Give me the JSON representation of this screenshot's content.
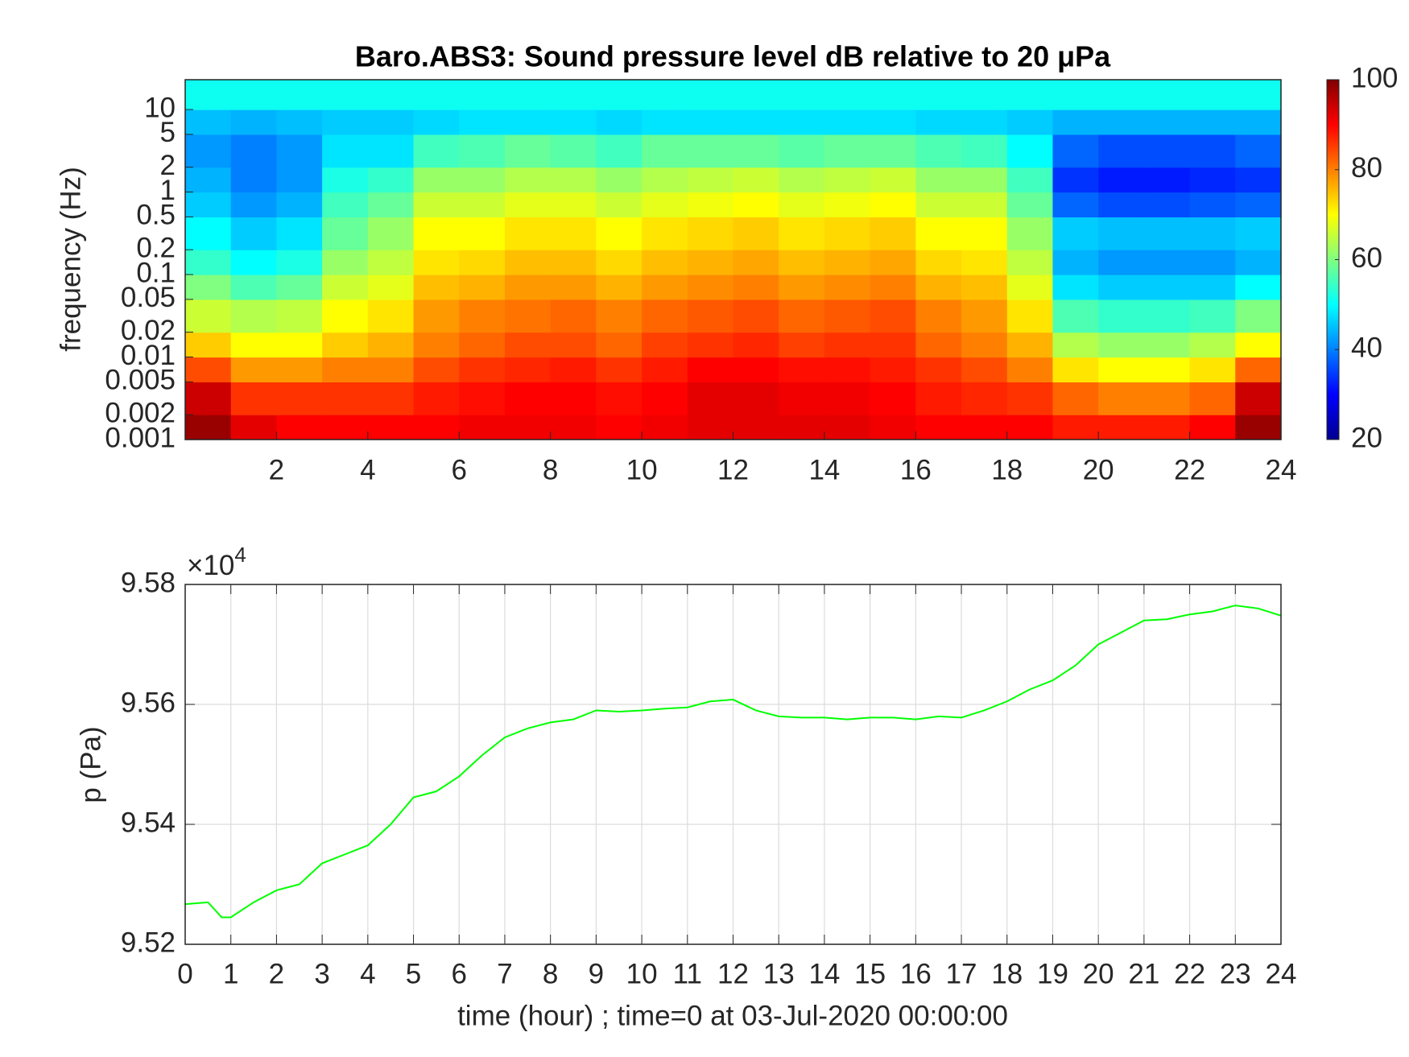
{
  "chart_data": [
    {
      "type": "heatmap",
      "title": "Baro.ABS3: Sound pressure level dB relative to 20 μPa",
      "y_label": "frequency (Hz)",
      "colormap": "jet",
      "ylog": true,
      "xlim": [
        0,
        24
      ],
      "xticks": [
        2,
        4,
        6,
        8,
        10,
        12,
        14,
        16,
        18,
        20,
        22,
        24
      ],
      "ylim": [
        0.001,
        23
      ],
      "yticks": [
        0.001,
        0.002,
        0.005,
        0.01,
        0.02,
        0.05,
        0.1,
        0.2,
        0.5,
        1,
        2,
        5,
        10
      ],
      "clim": [
        20,
        100
      ],
      "colorbar_ticks": [
        20,
        40,
        60,
        80,
        100
      ],
      "x_edges": [
        0,
        1,
        2,
        3,
        4,
        5,
        6,
        7,
        8,
        9,
        10,
        11,
        12,
        13,
        14,
        15,
        16,
        17,
        18,
        19,
        20,
        21,
        22,
        23,
        24
      ],
      "y_edges": [
        0.001,
        0.002,
        0.005,
        0.01,
        0.02,
        0.05,
        0.1,
        0.2,
        0.5,
        1,
        2,
        5,
        10,
        23
      ],
      "z": [
        [
          98,
          92,
          90,
          90,
          90,
          90,
          91,
          91,
          91,
          90,
          91,
          92,
          92,
          92,
          92,
          91,
          90,
          90,
          90,
          88,
          88,
          88,
          90,
          98
        ],
        [
          94,
          86,
          86,
          86,
          86,
          88,
          89,
          90,
          90,
          89,
          90,
          92,
          92,
          91,
          91,
          90,
          88,
          87,
          86,
          82,
          80,
          80,
          82,
          94
        ],
        [
          84,
          78,
          78,
          80,
          80,
          84,
          86,
          87,
          88,
          86,
          88,
          90,
          90,
          89,
          89,
          88,
          86,
          84,
          80,
          72,
          70,
          70,
          72,
          82
        ],
        [
          74,
          70,
          70,
          74,
          76,
          80,
          82,
          84,
          84,
          82,
          85,
          86,
          87,
          85,
          86,
          86,
          82,
          80,
          76,
          64,
          62,
          62,
          64,
          70
        ],
        [
          66,
          64,
          65,
          70,
          72,
          78,
          80,
          81,
          82,
          80,
          82,
          83,
          84,
          82,
          83,
          84,
          80,
          78,
          72,
          56,
          54,
          54,
          55,
          60
        ],
        [
          60,
          56,
          58,
          66,
          68,
          75,
          76,
          78,
          78,
          76,
          78,
          79,
          80,
          78,
          79,
          80,
          76,
          75,
          68,
          48,
          46,
          46,
          46,
          50
        ],
        [
          54,
          50,
          52,
          62,
          65,
          72,
          73,
          75,
          75,
          73,
          75,
          76,
          77,
          75,
          76,
          77,
          73,
          72,
          65,
          44,
          42,
          42,
          42,
          44
        ],
        [
          50,
          46,
          48,
          58,
          62,
          70,
          70,
          72,
          72,
          70,
          72,
          73,
          74,
          72,
          73,
          74,
          70,
          70,
          62,
          46,
          45,
          45,
          45,
          46
        ],
        [
          46,
          42,
          44,
          55,
          58,
          66,
          66,
          68,
          68,
          66,
          68,
          69,
          70,
          68,
          69,
          70,
          66,
          66,
          58,
          38,
          36,
          36,
          37,
          38
        ],
        [
          44,
          40,
          42,
          52,
          54,
          62,
          62,
          64,
          64,
          62,
          64,
          65,
          66,
          64,
          65,
          66,
          62,
          62,
          55,
          34,
          32,
          32,
          33,
          34
        ],
        [
          42,
          40,
          42,
          48,
          48,
          55,
          56,
          58,
          57,
          55,
          58,
          58,
          58,
          57,
          58,
          58,
          56,
          55,
          50,
          38,
          36,
          36,
          36,
          38
        ],
        [
          45,
          44,
          45,
          46,
          46,
          47,
          48,
          48,
          48,
          47,
          48,
          48,
          48,
          48,
          48,
          48,
          47,
          47,
          46,
          44,
          44,
          44,
          44,
          44
        ],
        [
          51,
          51,
          51,
          51,
          51,
          51,
          51,
          51,
          51,
          51,
          51,
          51,
          51,
          51,
          51,
          51,
          51,
          51,
          51,
          51,
          51,
          51,
          51,
          51
        ]
      ]
    },
    {
      "type": "line",
      "x_label": "time (hour) ; time=0 at 03-Jul-2020 00:00:00",
      "y_label": "p (Pa)",
      "y_exponent_label": {
        "base": "×10",
        "exponent": "4"
      },
      "grid": true,
      "xlim": [
        0,
        24
      ],
      "xticks": [
        0,
        1,
        2,
        3,
        4,
        5,
        6,
        7,
        8,
        9,
        10,
        11,
        12,
        13,
        14,
        15,
        16,
        17,
        18,
        19,
        20,
        21,
        22,
        23,
        24
      ],
      "ylim": [
        95200,
        95800
      ],
      "yticks": [
        {
          "value": 95200,
          "label": "9.52"
        },
        {
          "value": 95400,
          "label": "9.54"
        },
        {
          "value": 95600,
          "label": "9.56"
        },
        {
          "value": 95800,
          "label": "9.58"
        }
      ],
      "series": [
        {
          "color": "#00ff00",
          "x": [
            0,
            0.5,
            0.8,
            1,
            1.5,
            2,
            2.5,
            3,
            3.5,
            4,
            4.5,
            5,
            5.5,
            6,
            6.5,
            7,
            7.5,
            8,
            8.5,
            9,
            9.5,
            10,
            10.5,
            11,
            11.5,
            12,
            12.5,
            13,
            13.5,
            14,
            14.5,
            15,
            15.5,
            16,
            16.5,
            17,
            17.5,
            18,
            18.5,
            19,
            19.5,
            20,
            20.5,
            21,
            21.5,
            22,
            22.5,
            23,
            23.5,
            24
          ],
          "values": [
            95267,
            95270,
            95245,
            95245,
            95270,
            95290,
            95300,
            95335,
            95350,
            95365,
            95400,
            95445,
            95455,
            95480,
            95515,
            95545,
            95560,
            95570,
            95575,
            95590,
            95588,
            95590,
            95593,
            95595,
            95605,
            95608,
            95590,
            95580,
            95578,
            95578,
            95575,
            95578,
            95578,
            95575,
            95580,
            95578,
            95590,
            95605,
            95625,
            95640,
            95665,
            95700,
            95720,
            95740,
            95742,
            95750,
            95755,
            95765,
            95760,
            95748
          ]
        }
      ]
    }
  ]
}
